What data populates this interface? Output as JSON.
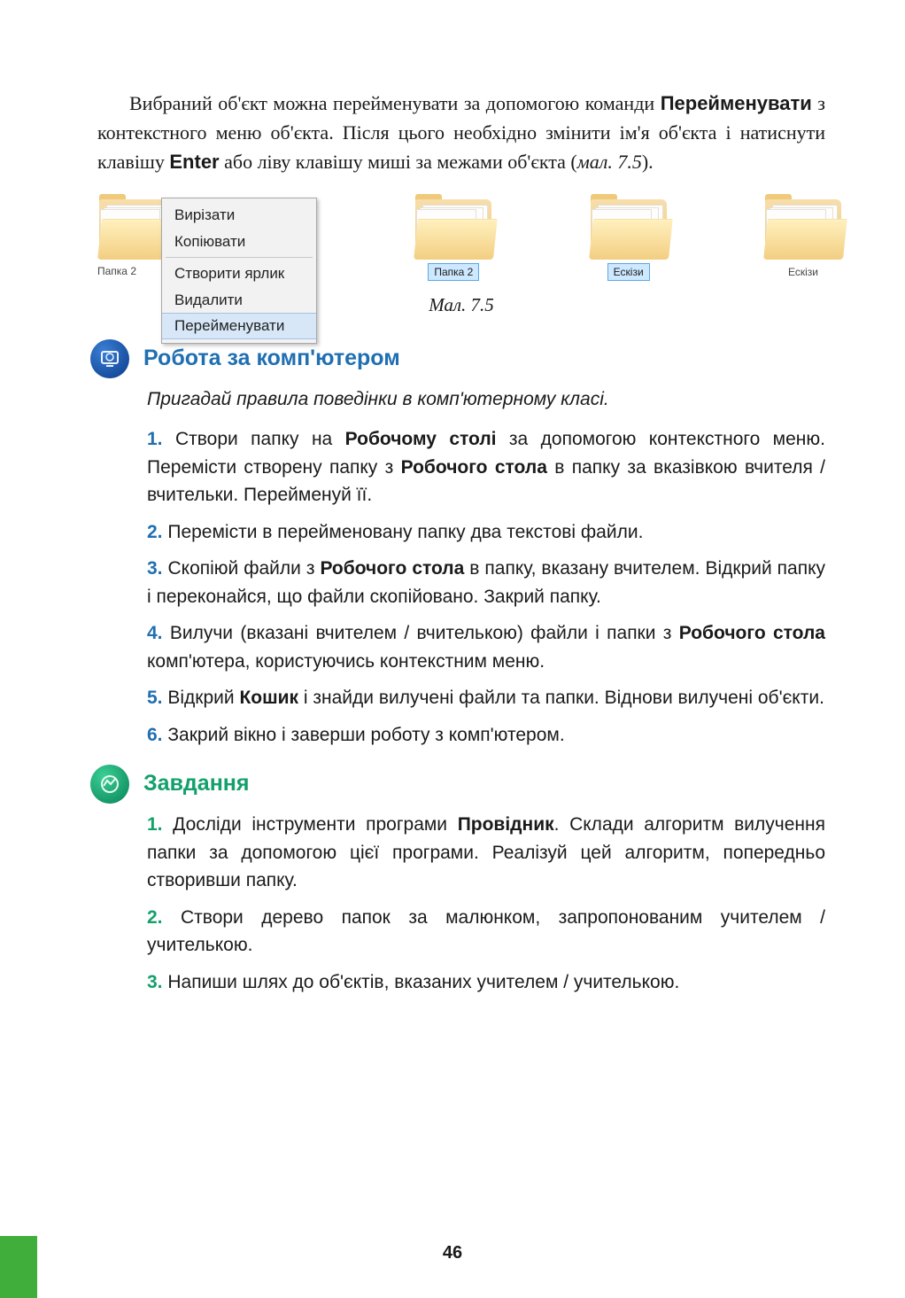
{
  "intro": {
    "pre": "Вибраний об'єкт можна перейменувати за допомогою команди ",
    "b1": "Перейменувати",
    "mid1": " з контекстного меню об'єкта. Після цього необхідно змінити ім'я об'єкта і натиснути клавішу ",
    "b2": "Enter",
    "mid2": " або ліву клавішу миші за межами об'єкта (",
    "ref": "мал. 7.5",
    "post": ")."
  },
  "figure": {
    "caption": "Мал. 7.5",
    "folder1_label": "Папка 2",
    "folder2_label": "Папка 2",
    "folder3_label": "Ескізи",
    "folder4_label": "Ескізи",
    "menu": {
      "cut": "Вирізати",
      "copy": "Копіювати",
      "shortcut": "Створити ярлик",
      "delete": "Видалити",
      "rename": "Перейменувати"
    }
  },
  "section1": {
    "title": "Робота за комп'ютером",
    "reminder": "Пригадай правила поведінки в комп'ютерному класі.",
    "items": [
      {
        "n": "1.",
        "pre": "Створи папку на ",
        "b1": "Робочому столі",
        "mid": " за допомогою контекстного меню. Перемісти створену папку з ",
        "b2": "Робочого стола",
        "post": " в папку за вказівкою вчителя / вчительки. Перейменуй її."
      },
      {
        "n": "2.",
        "pre": "Перемісти в перейменовану папку два текстові файли.",
        "b1": "",
        "mid": "",
        "b2": "",
        "post": ""
      },
      {
        "n": "3.",
        "pre": "Скопіюй файли з ",
        "b1": "Робочого стола",
        "mid": " в папку, вказану вчителем. Відкрий папку і переконайся, що файли скопійовано. Закрий папку.",
        "b2": "",
        "post": ""
      },
      {
        "n": "4.",
        "pre": "Вилучи (вказані вчителем / вчителькою) файли і папки з ",
        "b1": "Робочого стола",
        "mid": " комп'ютера, користуючись контекстним меню.",
        "b2": "",
        "post": ""
      },
      {
        "n": "5.",
        "pre": "Відкрий ",
        "b1": "Кошик",
        "mid": " і знайди вилучені файли та папки. Віднови вилучені об'єкти.",
        "b2": "",
        "post": ""
      },
      {
        "n": "6.",
        "pre": "Закрий вікно і заверши роботу з комп'ютером.",
        "b1": "",
        "mid": "",
        "b2": "",
        "post": ""
      }
    ]
  },
  "section2": {
    "title": "Завдання",
    "items": [
      {
        "n": "1.",
        "pre": "Досліди інструменти програми ",
        "b1": "Провідник",
        "mid": ". Склади алгоритм вилучення папки за допомогою цієї програми. Реалізуй цей алгоритм, попередньо створивши папку.",
        "b2": "",
        "post": ""
      },
      {
        "n": "2.",
        "pre": "Створи дерево папок за малюнком, запропонованим учителем / учителькою.",
        "b1": "",
        "mid": "",
        "b2": "",
        "post": ""
      },
      {
        "n": "3.",
        "pre": "Напиши шлях до об'єктів, вказаних учителем / учителькою.",
        "b1": "",
        "mid": "",
        "b2": "",
        "post": ""
      }
    ]
  },
  "page_num": "46",
  "colors": {
    "blue": "#1f6fb2",
    "green": "#13a06b",
    "edge": "#3fae3a"
  }
}
